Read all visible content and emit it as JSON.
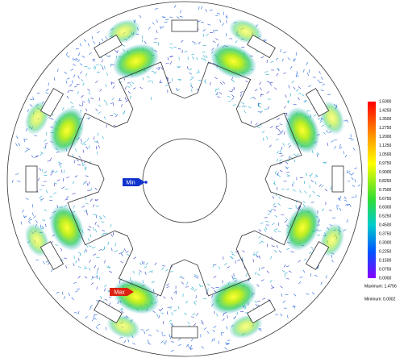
{
  "legend": {
    "ticks": [
      "1.5000",
      "1.4250",
      "1.3500",
      "1.2750",
      "1.2000",
      "1.1250",
      "1.0500",
      "0.9750",
      "0.9000",
      "0.8250",
      "0.7500",
      "0.6750",
      "0.6000",
      "0.5250",
      "0.4500",
      "0.3750",
      "0.3000",
      "0.2250",
      "0.1500",
      "0.0750",
      "0.0000"
    ],
    "maximum": "Maximum: 1.4756",
    "minimum": "Minimum: 0.0002"
  },
  "markers": {
    "min": "Min",
    "max": "Max"
  }
}
